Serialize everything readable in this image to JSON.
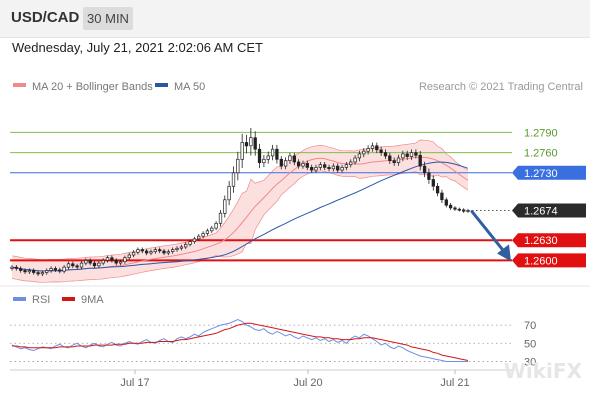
{
  "header": {
    "pair": "USD/CAD",
    "timeframe": "30 MIN",
    "datetime": "Wednesday, July 21, 2021 2:02:06 AM CET"
  },
  "legend": {
    "bollinger_label": "MA 20 + Bollinger Bands",
    "ma50_label": "MA 50",
    "credit": "Research © 2021 Trading Central"
  },
  "rsi_legend": {
    "rsi_label": "RSI",
    "ma_label": "9MA"
  },
  "watermark": "WikiFX",
  "colors": {
    "bollinger": "#f08a8a",
    "band_fill": "#fbd5d5",
    "ma50": "#2a55a8",
    "candle": "#222222",
    "green_level": "#7fbf4d",
    "blue_level": "#3a6fe0",
    "red_level": "#e01010",
    "current_price": "#2b2b2b",
    "arrow": "#2f5fa0",
    "rsi": "#6f8fe0",
    "rsi_ma": "#d01818"
  },
  "chart_data": [
    {
      "type": "candlestick",
      "title": "USD/CAD 30 MIN",
      "x_ticks": [
        "Jul 17",
        "Jul 20",
        "Jul 21"
      ],
      "ylim": [
        1.2568,
        1.2838
      ],
      "price_levels": [
        {
          "label": "1.2790",
          "value": 1.279,
          "kind": "resistance",
          "color": "#7fbf4d"
        },
        {
          "label": "1.2760",
          "value": 1.276,
          "kind": "resistance",
          "color": "#7fbf4d"
        },
        {
          "label": "1.2730",
          "value": 1.273,
          "kind": "pivot",
          "color": "#3a6fe0"
        },
        {
          "label": "1.2674",
          "value": 1.2674,
          "kind": "last",
          "color": "#2b2b2b"
        },
        {
          "label": "1.2630",
          "value": 1.263,
          "kind": "support",
          "color": "#e01010"
        },
        {
          "label": "1.2600",
          "value": 1.26,
          "kind": "support",
          "color": "#e01010"
        }
      ],
      "close": [
        1.259,
        1.2588,
        1.2585,
        1.2583,
        1.2585,
        1.2582,
        1.258,
        1.2582,
        1.2585,
        1.2588,
        1.2586,
        1.2584,
        1.259,
        1.2595,
        1.2592,
        1.259,
        1.2596,
        1.26,
        1.2596,
        1.2592,
        1.2596,
        1.26,
        1.2604,
        1.26,
        1.2596,
        1.2598,
        1.2604,
        1.2608,
        1.2612,
        1.2616,
        1.2614,
        1.2611,
        1.2613,
        1.2616,
        1.2614,
        1.2611,
        1.2613,
        1.2616,
        1.2618,
        1.262,
        1.2624,
        1.2628,
        1.2632,
        1.2636,
        1.264,
        1.2644,
        1.2648,
        1.2655,
        1.267,
        1.269,
        1.271,
        1.273,
        1.275,
        1.2775,
        1.277,
        1.2782,
        1.2765,
        1.2745,
        1.275,
        1.2755,
        1.2765,
        1.275,
        1.274,
        1.2748,
        1.2755,
        1.2746,
        1.274,
        1.2744,
        1.2738,
        1.2734,
        1.2738,
        1.2742,
        1.2738,
        1.2736,
        1.274,
        1.2734,
        1.2738,
        1.2742,
        1.2746,
        1.2752,
        1.2758,
        1.2762,
        1.2766,
        1.277,
        1.2764,
        1.276,
        1.2755,
        1.2748,
        1.2745,
        1.2752,
        1.2758,
        1.2754,
        1.276,
        1.2756,
        1.274,
        1.273,
        1.272,
        1.271,
        1.27,
        1.269,
        1.2682,
        1.2678,
        1.2676,
        1.2675,
        1.2673,
        1.2674
      ],
      "volatility": [
        0.0004,
        0.0004,
        0.0004,
        0.0004,
        0.0004,
        0.0004,
        0.0004,
        0.0004,
        0.0004,
        0.0004,
        0.0004,
        0.0004,
        0.0004,
        0.0004,
        0.0004,
        0.0004,
        0.0004,
        0.0004,
        0.0004,
        0.0004,
        0.0004,
        0.0004,
        0.0004,
        0.0004,
        0.0004,
        0.0004,
        0.0004,
        0.0004,
        0.0004,
        0.0004,
        0.0004,
        0.0004,
        0.0004,
        0.0004,
        0.0004,
        0.0004,
        0.0004,
        0.0004,
        0.0004,
        0.0004,
        0.0004,
        0.0004,
        0.0004,
        0.0004,
        0.0004,
        0.0004,
        0.0004,
        0.0004,
        0.0006,
        0.0008,
        0.001,
        0.0012,
        0.0014,
        0.0016,
        0.0014,
        0.0018,
        0.0012,
        0.001,
        0.0008,
        0.0008,
        0.0008,
        0.0008,
        0.0006,
        0.0006,
        0.0006,
        0.0006,
        0.0005,
        0.0005,
        0.0005,
        0.0005,
        0.0005,
        0.0005,
        0.0005,
        0.0005,
        0.0005,
        0.0005,
        0.0005,
        0.0005,
        0.0005,
        0.0005,
        0.0006,
        0.0006,
        0.0006,
        0.0006,
        0.0006,
        0.0006,
        0.0006,
        0.0006,
        0.0006,
        0.0006,
        0.0006,
        0.0006,
        0.0006,
        0.0006,
        0.0008,
        0.0008,
        0.0008,
        0.0008,
        0.0006,
        0.0006,
        0.0004,
        0.0004,
        0.0003,
        0.0003,
        0.0003,
        0.0003
      ],
      "projection": {
        "from": 1.2674,
        "to": 1.26
      }
    },
    {
      "type": "line",
      "title": "RSI",
      "ylim": [
        25,
        80
      ],
      "y_ticks": [
        70,
        50,
        30
      ],
      "series": [
        {
          "name": "RSI",
          "values": [
            48,
            46,
            44,
            45,
            43,
            42,
            44,
            46,
            45,
            44,
            47,
            49,
            46,
            45,
            48,
            50,
            47,
            45,
            48,
            50,
            47,
            46,
            49,
            51,
            48,
            47,
            50,
            52,
            50,
            49,
            52,
            54,
            51,
            50,
            53,
            55,
            52,
            51,
            55,
            57,
            55,
            57,
            60,
            58,
            62,
            64,
            66,
            68,
            70,
            71,
            72,
            74,
            76,
            74,
            70,
            68,
            65,
            64,
            66,
            62,
            60,
            63,
            61,
            58,
            60,
            57,
            55,
            58,
            56,
            54,
            56,
            53,
            55,
            52,
            54,
            51,
            53,
            50,
            55,
            58,
            56,
            60,
            58,
            55,
            52,
            48,
            50,
            46,
            44,
            47,
            45,
            42,
            40,
            38,
            36,
            35,
            34,
            33,
            32,
            31,
            30,
            30,
            30,
            30,
            30,
            30
          ]
        },
        {
          "name": "9MA",
          "values": [
            47,
            47,
            46,
            46,
            45,
            45,
            45,
            45,
            45,
            45,
            45,
            46,
            46,
            46,
            46,
            47,
            47,
            47,
            47,
            48,
            48,
            48,
            48,
            48,
            49,
            49,
            49,
            50,
            50,
            50,
            50,
            51,
            51,
            51,
            52,
            52,
            52,
            52,
            53,
            54,
            54,
            55,
            56,
            57,
            58,
            59,
            60,
            61,
            63,
            65,
            66,
            68,
            70,
            71,
            72,
            72,
            71,
            70,
            69,
            68,
            67,
            66,
            65,
            64,
            63,
            62,
            61,
            60,
            59,
            58,
            57,
            57,
            56,
            56,
            55,
            55,
            54,
            54,
            54,
            55,
            55,
            56,
            56,
            56,
            55,
            54,
            53,
            52,
            51,
            50,
            49,
            48,
            46,
            45,
            44,
            43,
            42,
            40,
            39,
            37,
            36,
            35,
            34,
            33,
            32,
            31
          ]
        }
      ]
    }
  ]
}
